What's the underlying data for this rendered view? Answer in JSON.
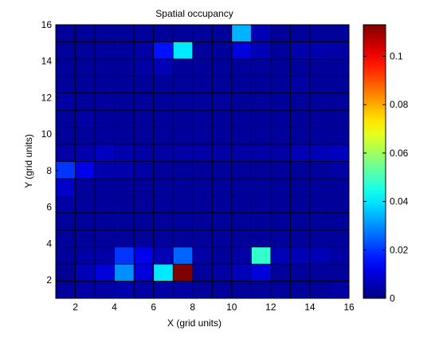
{
  "chart_data": {
    "type": "heatmap",
    "title": "Spatial occupancy",
    "xlabel": "X (grid units)",
    "ylabel": "Y (grid units)",
    "xlim": [
      1,
      16
    ],
    "ylim": [
      1,
      16
    ],
    "x_ticks": [
      "2",
      "4",
      "6",
      "8",
      "10",
      "12",
      "14",
      "16"
    ],
    "y_ticks": [
      "2",
      "4",
      "6",
      "8",
      "10",
      "12",
      "14",
      "16"
    ],
    "colorbar": {
      "min": 0,
      "max": 0.113,
      "ticks": [
        "0",
        "0.02",
        "0.04",
        "0.06",
        "0.08",
        "0.1"
      ]
    },
    "colormap": "jet",
    "grid_lines": true,
    "rows_bottom_to_top": [
      [
        0.003,
        0.004,
        0.004,
        0.005,
        0.004,
        0.004,
        0.004,
        0.003,
        0.003,
        0.003,
        0.003,
        0.003,
        0.003,
        0.003,
        0.004
      ],
      [
        0.002,
        0.006,
        0.01,
        0.03,
        0.01,
        0.04,
        0.113,
        0.003,
        0.004,
        0.006,
        0.01,
        0.003,
        0.003,
        0.003,
        0.003
      ],
      [
        0.003,
        0.004,
        0.004,
        0.02,
        0.012,
        0.006,
        0.025,
        0.004,
        0.003,
        0.004,
        0.048,
        0.006,
        0.006,
        0.006,
        0.004
      ],
      [
        0.003,
        0.003,
        0.003,
        0.003,
        0.003,
        0.003,
        0.003,
        0.003,
        0.003,
        0.003,
        0.003,
        0.003,
        0.003,
        0.003,
        0.003
      ],
      [
        0.003,
        0.003,
        0.003,
        0.003,
        0.003,
        0.003,
        0.003,
        0.003,
        0.003,
        0.003,
        0.003,
        0.003,
        0.003,
        0.003,
        0.003
      ],
      [
        0.004,
        0.003,
        0.003,
        0.003,
        0.003,
        0.003,
        0.003,
        0.003,
        0.003,
        0.003,
        0.003,
        0.003,
        0.003,
        0.003,
        0.003
      ],
      [
        0.008,
        0.003,
        0.003,
        0.003,
        0.003,
        0.003,
        0.003,
        0.003,
        0.003,
        0.003,
        0.003,
        0.003,
        0.003,
        0.003,
        0.003
      ],
      [
        0.02,
        0.012,
        0.005,
        0.005,
        0.004,
        0.003,
        0.003,
        0.003,
        0.003,
        0.003,
        0.003,
        0.003,
        0.003,
        0.003,
        0.004
      ],
      [
        0.004,
        0.005,
        0.007,
        0.005,
        0.004,
        0.004,
        0.004,
        0.004,
        0.004,
        0.004,
        0.004,
        0.004,
        0.006,
        0.006,
        0.007
      ],
      [
        0.003,
        0.003,
        0.003,
        0.003,
        0.003,
        0.003,
        0.003,
        0.003,
        0.003,
        0.003,
        0.003,
        0.003,
        0.003,
        0.003,
        0.003
      ],
      [
        0.003,
        0.004,
        0.003,
        0.003,
        0.003,
        0.003,
        0.003,
        0.003,
        0.003,
        0.003,
        0.003,
        0.003,
        0.003,
        0.003,
        0.003
      ],
      [
        0.004,
        0.003,
        0.003,
        0.003,
        0.003,
        0.003,
        0.003,
        0.003,
        0.003,
        0.003,
        0.003,
        0.003,
        0.003,
        0.003,
        0.003
      ],
      [
        0.003,
        0.003,
        0.003,
        0.003,
        0.003,
        0.003,
        0.003,
        0.003,
        0.003,
        0.003,
        0.003,
        0.003,
        0.004,
        0.003,
        0.003
      ],
      [
        0.003,
        0.003,
        0.003,
        0.003,
        0.004,
        0.006,
        0.003,
        0.003,
        0.003,
        0.003,
        0.003,
        0.003,
        0.003,
        0.003,
        0.003
      ],
      [
        0.003,
        0.003,
        0.003,
        0.003,
        0.004,
        0.016,
        0.04,
        0.003,
        0.003,
        0.01,
        0.006,
        0.003,
        0.005,
        0.005,
        0.004
      ],
      [
        0.003,
        0.003,
        0.003,
        0.003,
        0.003,
        0.003,
        0.003,
        0.003,
        0.003,
        0.034,
        0.006,
        0.003,
        0.003,
        0.003,
        0.003
      ]
    ]
  }
}
